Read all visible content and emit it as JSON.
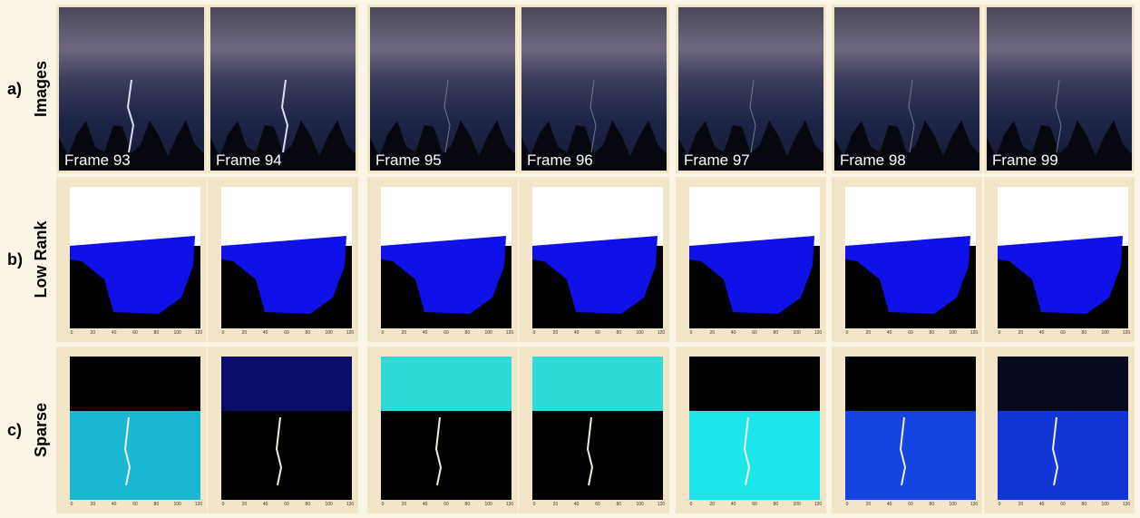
{
  "rows": [
    {
      "letter": "a)",
      "label": "Images"
    },
    {
      "letter": "b)",
      "label": "Low Rank"
    },
    {
      "letter": "c)",
      "label": "Sparse"
    }
  ],
  "frames": [
    "Frame 93",
    "Frame 94",
    "Frame 95",
    "Frame 96",
    "Frame 97",
    "Frame 98",
    "Frame 99"
  ],
  "axis_ticks": [
    "0",
    "20",
    "40",
    "60",
    "80",
    "100",
    "120"
  ]
}
